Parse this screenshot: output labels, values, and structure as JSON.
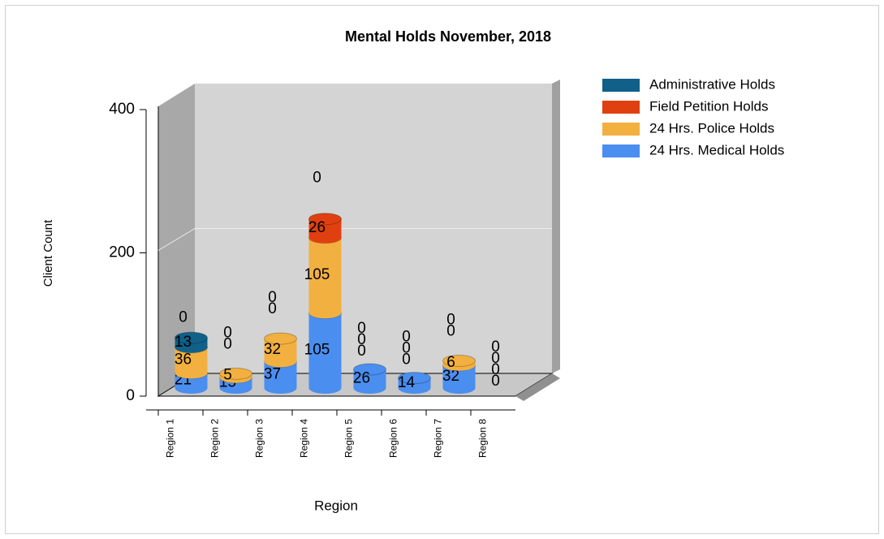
{
  "chart_data": {
    "type": "bar",
    "stacked": true,
    "title": "Mental Holds November, 2018",
    "x_label": "Region",
    "y_label": "Client Count",
    "categories": [
      "Region 1",
      "Region 2",
      "Region 3",
      "Region 4",
      "Region 5",
      "Region 6",
      "Region 7",
      "Region 8"
    ],
    "series": [
      {
        "name": "24 Hrs. Medical Holds",
        "color": "#4a8ef0",
        "values": [
          21,
          15,
          37,
          105,
          26,
          14,
          32,
          0
        ]
      },
      {
        "name": "24 Hrs. Police Holds",
        "color": "#f2b040",
        "values": [
          36,
          5,
          32,
          105,
          0,
          0,
          6,
          0
        ]
      },
      {
        "name": "Field Petition Holds",
        "color": "#e04010",
        "values": [
          0,
          0,
          0,
          26,
          0,
          0,
          0,
          0
        ]
      },
      {
        "name": "Administrative Holds",
        "color": "#10608a",
        "values": [
          13,
          0,
          0,
          0,
          0,
          0,
          0,
          0
        ]
      }
    ],
    "ylim": [
      0,
      400
    ],
    "yticks": [
      0,
      200,
      400
    ],
    "grid": true
  }
}
